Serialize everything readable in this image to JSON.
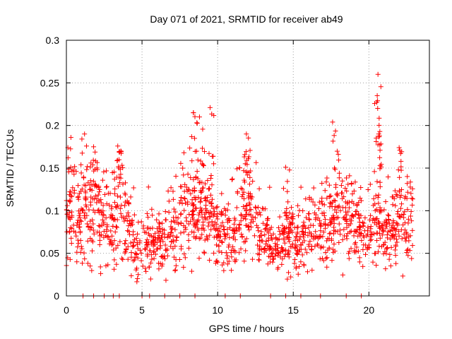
{
  "chart_data": {
    "type": "scatter",
    "title": "Day 071 of 2021, SRMTID for receiver ab49",
    "xlabel": "GPS time / hours",
    "ylabel": "SRMTID / TECUs",
    "xlim": [
      0,
      24
    ],
    "ylim": [
      0,
      0.3
    ],
    "grid": true,
    "marker": "+",
    "color": "#ff0000",
    "xticks": [
      0,
      5,
      10,
      15,
      20
    ],
    "xtick_labels": [
      "0",
      "5",
      "10",
      "15",
      "20"
    ],
    "yticks": [
      0,
      0.05,
      0.1,
      0.15,
      0.2,
      0.25,
      0.3
    ],
    "ytick_labels": [
      "0",
      "0.05",
      "0.1",
      "0.15",
      "0.2",
      "0.25",
      "0.3"
    ],
    "data_extent_hours": [
      0,
      22.9
    ],
    "series": [
      {
        "name": "SRMTID",
        "profile": [
          {
            "x": 0.0,
            "y": 0.085
          },
          {
            "x": 0.5,
            "y": 0.105
          },
          {
            "x": 1.0,
            "y": 0.08
          },
          {
            "x": 1.5,
            "y": 0.1
          },
          {
            "x": 2.0,
            "y": 0.11
          },
          {
            "x": 2.5,
            "y": 0.085
          },
          {
            "x": 3.0,
            "y": 0.08
          },
          {
            "x": 3.5,
            "y": 0.11
          },
          {
            "x": 4.0,
            "y": 0.08
          },
          {
            "x": 4.5,
            "y": 0.055
          },
          {
            "x": 5.0,
            "y": 0.055
          },
          {
            "x": 5.5,
            "y": 0.06
          },
          {
            "x": 6.0,
            "y": 0.065
          },
          {
            "x": 6.5,
            "y": 0.06
          },
          {
            "x": 7.0,
            "y": 0.07
          },
          {
            "x": 7.5,
            "y": 0.085
          },
          {
            "x": 8.0,
            "y": 0.1
          },
          {
            "x": 8.5,
            "y": 0.1
          },
          {
            "x": 9.0,
            "y": 0.1
          },
          {
            "x": 9.5,
            "y": 0.1
          },
          {
            "x": 10.0,
            "y": 0.075
          },
          {
            "x": 10.5,
            "y": 0.07
          },
          {
            "x": 11.0,
            "y": 0.075
          },
          {
            "x": 11.5,
            "y": 0.09
          },
          {
            "x": 12.0,
            "y": 0.11
          },
          {
            "x": 12.5,
            "y": 0.09
          },
          {
            "x": 13.0,
            "y": 0.075
          },
          {
            "x": 13.5,
            "y": 0.06
          },
          {
            "x": 14.0,
            "y": 0.05
          },
          {
            "x": 14.5,
            "y": 0.07
          },
          {
            "x": 15.0,
            "y": 0.07
          },
          {
            "x": 15.5,
            "y": 0.06
          },
          {
            "x": 16.0,
            "y": 0.07
          },
          {
            "x": 16.5,
            "y": 0.08
          },
          {
            "x": 17.0,
            "y": 0.08
          },
          {
            "x": 17.5,
            "y": 0.085
          },
          {
            "x": 18.0,
            "y": 0.11
          },
          {
            "x": 18.5,
            "y": 0.09
          },
          {
            "x": 19.0,
            "y": 0.085
          },
          {
            "x": 19.5,
            "y": 0.07
          },
          {
            "x": 20.0,
            "y": 0.065
          },
          {
            "x": 20.5,
            "y": 0.085
          },
          {
            "x": 21.0,
            "y": 0.08
          },
          {
            "x": 21.5,
            "y": 0.075
          },
          {
            "x": 22.0,
            "y": 0.085
          },
          {
            "x": 22.5,
            "y": 0.09
          },
          {
            "x": 22.9,
            "y": 0.085
          }
        ],
        "peaks": [
          {
            "x": 0.3,
            "y": 0.186
          },
          {
            "x": 1.2,
            "y": 0.19
          },
          {
            "x": 1.8,
            "y": 0.175
          },
          {
            "x": 3.6,
            "y": 0.17
          },
          {
            "x": 8.4,
            "y": 0.215
          },
          {
            "x": 8.8,
            "y": 0.21
          },
          {
            "x": 9.5,
            "y": 0.221
          },
          {
            "x": 11.9,
            "y": 0.19
          },
          {
            "x": 14.5,
            "y": 0.151
          },
          {
            "x": 17.6,
            "y": 0.204
          },
          {
            "x": 20.6,
            "y": 0.26
          },
          {
            "x": 20.55,
            "y": 0.235
          },
          {
            "x": 20.65,
            "y": 0.19
          },
          {
            "x": 22.0,
            "y": 0.174
          }
        ],
        "zero_points_x": [
          1.1,
          1.8,
          2.5,
          3.1,
          3.5,
          5.0,
          5.5,
          6.5,
          7.5,
          8.5,
          10.5,
          11.5,
          13.5,
          14.5,
          15.5,
          16.8,
          18.5,
          19.5
        ]
      }
    ]
  }
}
